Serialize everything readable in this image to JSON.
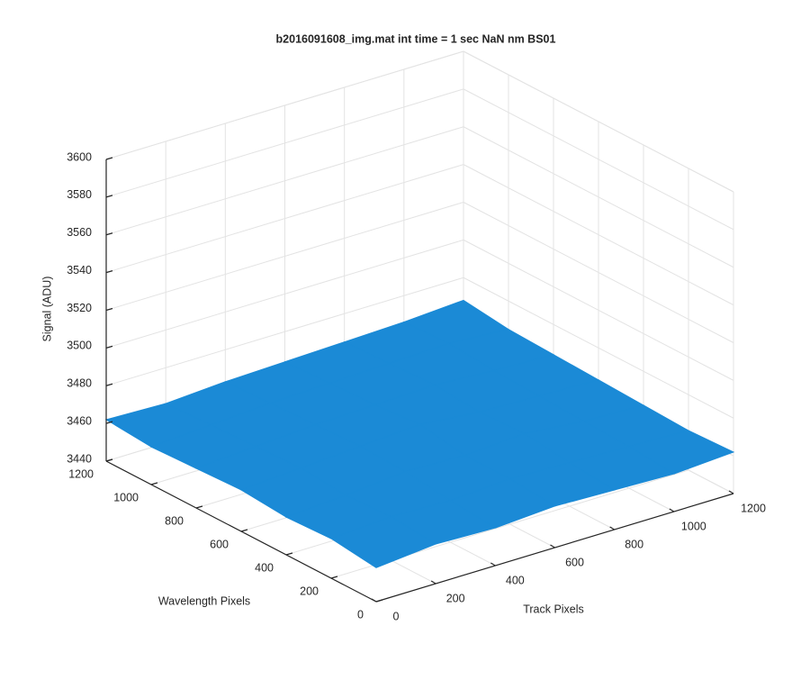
{
  "chart_data": {
    "type": "surface3d",
    "title": "b2016091608_img.mat int time = 1 sec  NaN nm BS01",
    "xlabel": "Track Pixels",
    "ylabel": "Wavelength Pixels",
    "zlabel": "Signal (ADU)",
    "x": [
      0,
      200,
      400,
      600,
      800,
      1000,
      1200
    ],
    "y": [
      0,
      200,
      400,
      600,
      800,
      1000,
      1200
    ],
    "z": [
      [
        3458,
        3461,
        3460,
        3462,
        3461,
        3460,
        3462
      ],
      [
        3461,
        3463,
        3462,
        3464,
        3463,
        3462,
        3461
      ],
      [
        3460,
        3462,
        3465,
        3464,
        3466,
        3463,
        3462
      ],
      [
        3462,
        3464,
        3466,
        3468,
        3465,
        3464,
        3463
      ],
      [
        3461,
        3463,
        3465,
        3466,
        3467,
        3465,
        3464
      ],
      [
        3460,
        3462,
        3464,
        3465,
        3466,
        3467,
        3465
      ],
      [
        3462,
        3461,
        3463,
        3464,
        3465,
        3466,
        3468
      ]
    ],
    "color": "#1b8ad6",
    "xlim": [
      0,
      1200
    ],
    "ylim": [
      0,
      1200
    ],
    "zlim": [
      3440,
      3600
    ],
    "xticks": [
      0,
      200,
      400,
      600,
      800,
      1000,
      1200
    ],
    "yticks": [
      0,
      200,
      400,
      600,
      800,
      1000,
      1200
    ],
    "zticks": [
      3440,
      3460,
      3480,
      3500,
      3520,
      3540,
      3560,
      3580,
      3600
    ],
    "grid": true
  }
}
